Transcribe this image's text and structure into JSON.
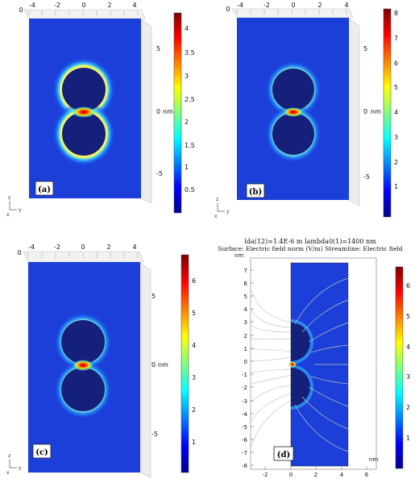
{
  "figure_panels": [
    {
      "id": "a",
      "label": "(a)",
      "x_ticks": [
        "-4",
        "-2",
        "0",
        "2",
        "4"
      ],
      "x_tick_left": "0",
      "y_ticks": [
        "5",
        "0",
        "-5"
      ],
      "unit": "nm",
      "colorbar": {
        "ticks": [
          "4",
          "3.5",
          "3",
          "2.5",
          "2",
          "1.5",
          "1",
          "0.5"
        ],
        "min": 0,
        "max": 4.3
      },
      "axis_triad": {
        "z": "z",
        "y": "y",
        "x": "x"
      }
    },
    {
      "id": "b",
      "label": "(b)",
      "x_ticks": [
        "-4",
        "-2",
        "0",
        "2",
        "4"
      ],
      "x_tick_left": "0",
      "y_ticks": [
        "5",
        "0",
        "-5"
      ],
      "unit": "nm",
      "colorbar": {
        "ticks": [
          "8",
          "7",
          "6",
          "5",
          "4",
          "3",
          "2",
          "1"
        ],
        "min": 0,
        "max": 8.4
      },
      "axis_triad": {
        "z": "z",
        "y": "y",
        "x": "x"
      }
    },
    {
      "id": "c",
      "label": "(c)",
      "x_ticks": [
        "-4",
        "-2",
        "0",
        "2",
        "4"
      ],
      "x_tick_left": "0",
      "y_ticks": [
        "5",
        "0",
        "-5"
      ],
      "unit": "nm",
      "colorbar": {
        "ticks": [
          "6",
          "5",
          "4",
          "3",
          "2",
          "1"
        ],
        "min": 0,
        "max": 6.7
      },
      "axis_triad": {
        "z": "z",
        "y": "y",
        "x": "x"
      }
    },
    {
      "id": "d",
      "label": "(d)",
      "title_line1": "lda(12)=1.4E-6 m lambda0(1)=1400 nm",
      "title_line2": "Surface: Electric field norm (V/m)  Streamline: Electric field",
      "x_unit": "nm",
      "y_unit": "nm",
      "x_ticks": [
        "-2",
        "0",
        "2",
        "4",
        "6"
      ],
      "y_ticks": [
        "7",
        "6",
        "5",
        "4",
        "3",
        "2",
        "1",
        "0",
        "-1",
        "-2",
        "-3",
        "-4",
        "-5",
        "-6",
        "-7",
        "-8"
      ],
      "x_range": [
        -3.6,
        7.5
      ],
      "y_range": [
        -8.5,
        7.6
      ],
      "colorbar": {
        "ticks": [
          "6",
          "5",
          "4",
          "3",
          "2",
          "1"
        ],
        "min": 0,
        "max": 6.6
      }
    }
  ]
}
